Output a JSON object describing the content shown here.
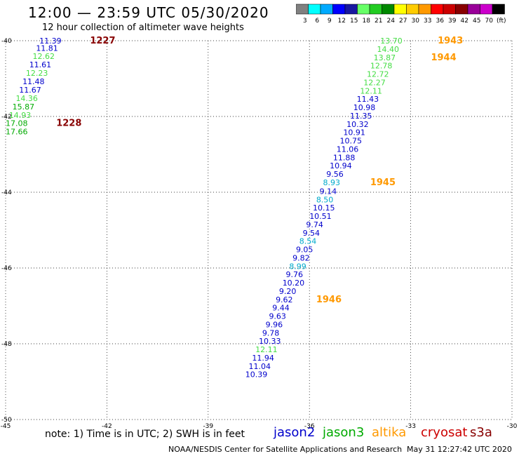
{
  "header": {
    "title": "12:00 — 23:59 UTC 05/30/2020",
    "subtitle": "12 hour collection of altimeter wave heights"
  },
  "color_scale": {
    "colors": [
      "#808080",
      "#00ffff",
      "#00aaff",
      "#0000ff",
      "#1818a0",
      "#66ff66",
      "#22cc22",
      "#008800",
      "#ffff00",
      "#ffcc00",
      "#ff9900",
      "#ff0000",
      "#cc0000",
      "#880000",
      "#990099",
      "#cc00cc",
      "#000000"
    ],
    "labels": [
      "3",
      "6",
      "9",
      "12",
      "15",
      "18",
      "21",
      "24",
      "27",
      "30",
      "33",
      "36",
      "39",
      "42",
      "45",
      "70",
      "(ft)"
    ]
  },
  "axes": {
    "x_ticks": [
      "-45",
      "-42",
      "-39",
      "-36",
      "-33",
      "-30"
    ],
    "y_ticks": [
      "-40",
      "-42",
      "-44",
      "-46",
      "-48",
      "-50"
    ],
    "xlim": [
      -45,
      -30
    ],
    "ylim": [
      -50,
      -40
    ]
  },
  "colors": {
    "blue": "#0000cc",
    "cyan": "#00aacc",
    "lightgreen": "#44dd44",
    "green": "#00aa00",
    "orange": "#ff9900",
    "darkred": "#880000"
  },
  "tracks": [
    {
      "points": [
        {
          "lon": -44.0,
          "lat": -40.0,
          "text": "11.39",
          "color": "blue"
        },
        {
          "lon": -44.1,
          "lat": -40.19,
          "text": "11.81",
          "color": "blue"
        },
        {
          "lon": -44.2,
          "lat": -40.41,
          "text": "12.62",
          "color": "lightgreen"
        },
        {
          "lon": -44.3,
          "lat": -40.63,
          "text": "11.61",
          "color": "blue"
        },
        {
          "lon": -44.4,
          "lat": -40.85,
          "text": "12.23",
          "color": "lightgreen"
        },
        {
          "lon": -44.5,
          "lat": -41.07,
          "text": "11.48",
          "color": "blue"
        },
        {
          "lon": -44.6,
          "lat": -41.3,
          "text": "11.67",
          "color": "blue"
        },
        {
          "lon": -44.7,
          "lat": -41.52,
          "text": "14.36",
          "color": "lightgreen"
        },
        {
          "lon": -44.8,
          "lat": -41.74,
          "text": "15.87",
          "color": "green"
        },
        {
          "lon": -44.9,
          "lat": -41.96,
          "text": "14.93",
          "color": "lightgreen"
        },
        {
          "lon": -45.0,
          "lat": -42.18,
          "text": "17.08",
          "color": "green"
        },
        {
          "lon": -45.0,
          "lat": -42.4,
          "text": "17.66",
          "color": "green"
        }
      ]
    },
    {
      "points": [
        {
          "lon": -33.9,
          "lat": -40.0,
          "text": "13.70",
          "color": "lightgreen"
        },
        {
          "lon": -34.0,
          "lat": -40.22,
          "text": "14.40",
          "color": "lightgreen"
        },
        {
          "lon": -34.1,
          "lat": -40.44,
          "text": "13.87",
          "color": "lightgreen"
        },
        {
          "lon": -34.2,
          "lat": -40.66,
          "text": "12.78",
          "color": "lightgreen"
        },
        {
          "lon": -34.3,
          "lat": -40.88,
          "text": "12.72",
          "color": "lightgreen"
        },
        {
          "lon": -34.4,
          "lat": -41.1,
          "text": "12.27",
          "color": "lightgreen"
        },
        {
          "lon": -34.5,
          "lat": -41.32,
          "text": "12.11",
          "color": "lightgreen"
        },
        {
          "lon": -34.6,
          "lat": -41.54,
          "text": "11.43",
          "color": "blue"
        },
        {
          "lon": -34.7,
          "lat": -41.76,
          "text": "10.98",
          "color": "blue"
        },
        {
          "lon": -34.8,
          "lat": -41.98,
          "text": "11.35",
          "color": "blue"
        },
        {
          "lon": -34.9,
          "lat": -42.2,
          "text": "10.32",
          "color": "blue"
        },
        {
          "lon": -35.0,
          "lat": -42.42,
          "text": "10.91",
          "color": "blue"
        },
        {
          "lon": -35.1,
          "lat": -42.64,
          "text": "10.75",
          "color": "blue"
        },
        {
          "lon": -35.2,
          "lat": -42.86,
          "text": "11.06",
          "color": "blue"
        },
        {
          "lon": -35.3,
          "lat": -43.08,
          "text": "11.88",
          "color": "blue"
        },
        {
          "lon": -35.4,
          "lat": -43.3,
          "text": "10.94",
          "color": "blue"
        },
        {
          "lon": -35.5,
          "lat": -43.52,
          "text": "9.56",
          "color": "blue"
        },
        {
          "lon": -35.6,
          "lat": -43.74,
          "text": "8.93",
          "color": "cyan"
        },
        {
          "lon": -35.7,
          "lat": -43.97,
          "text": "9.14",
          "color": "blue"
        },
        {
          "lon": -35.8,
          "lat": -44.19,
          "text": "8.50",
          "color": "cyan"
        },
        {
          "lon": -35.9,
          "lat": -44.41,
          "text": "10.15",
          "color": "blue"
        },
        {
          "lon": -36.0,
          "lat": -44.63,
          "text": "10.51",
          "color": "blue"
        },
        {
          "lon": -36.1,
          "lat": -44.85,
          "text": "9.74",
          "color": "blue"
        },
        {
          "lon": -36.2,
          "lat": -45.07,
          "text": "9.54",
          "color": "blue"
        },
        {
          "lon": -36.3,
          "lat": -45.29,
          "text": "8.54",
          "color": "cyan"
        },
        {
          "lon": -36.4,
          "lat": -45.51,
          "text": "9.05",
          "color": "blue"
        },
        {
          "lon": -36.5,
          "lat": -45.73,
          "text": "9.82",
          "color": "blue"
        },
        {
          "lon": -36.6,
          "lat": -45.95,
          "text": "8.99",
          "color": "cyan"
        },
        {
          "lon": -36.7,
          "lat": -46.17,
          "text": "9.76",
          "color": "blue"
        },
        {
          "lon": -36.8,
          "lat": -46.39,
          "text": "10.20",
          "color": "blue"
        },
        {
          "lon": -36.9,
          "lat": -46.61,
          "text": "9.20",
          "color": "blue"
        },
        {
          "lon": -37.0,
          "lat": -46.83,
          "text": "9.62",
          "color": "blue"
        },
        {
          "lon": -37.1,
          "lat": -47.05,
          "text": "9.44",
          "color": "blue"
        },
        {
          "lon": -37.2,
          "lat": -47.27,
          "text": "9.63",
          "color": "blue"
        },
        {
          "lon": -37.3,
          "lat": -47.49,
          "text": "9.96",
          "color": "blue"
        },
        {
          "lon": -37.4,
          "lat": -47.71,
          "text": "9.78",
          "color": "blue"
        },
        {
          "lon": -37.5,
          "lat": -47.93,
          "text": "10.33",
          "color": "blue"
        },
        {
          "lon": -37.6,
          "lat": -48.15,
          "text": "12.11",
          "color": "lightgreen"
        },
        {
          "lon": -37.7,
          "lat": -48.37,
          "text": "11.94",
          "color": "blue"
        },
        {
          "lon": -37.8,
          "lat": -48.59,
          "text": "11.04",
          "color": "blue"
        },
        {
          "lon": -37.9,
          "lat": -48.81,
          "text": "10.39",
          "color": "blue"
        }
      ]
    }
  ],
  "time_labels": [
    {
      "lon": -42.5,
      "lat": -40.0,
      "text": "1227",
      "color": "darkred"
    },
    {
      "lon": -43.5,
      "lat": -42.18,
      "text": "1228",
      "color": "darkred"
    },
    {
      "lon": -32.2,
      "lat": -40.0,
      "text": "1943",
      "color": "orange"
    },
    {
      "lon": -32.4,
      "lat": -40.44,
      "text": "1944",
      "color": "orange"
    },
    {
      "lon": -34.2,
      "lat": -43.74,
      "text": "1945",
      "color": "orange"
    },
    {
      "lon": -35.8,
      "lat": -46.83,
      "text": "1946",
      "color": "orange"
    }
  ],
  "footer": {
    "note": "note: 1) Time is in UTC; 2) SWH is in feet",
    "satellites": [
      {
        "name": "jason2",
        "color": "#0000cc"
      },
      {
        "name": "jason3",
        "color": "#00aa00"
      },
      {
        "name": "altika",
        "color": "#ff9900"
      },
      {
        "name": "cryosat",
        "color": "#cc0000"
      },
      {
        "name": "s3a",
        "color": "#880000"
      }
    ],
    "credit": "NOAA/NESDIS Center for Satellite Applications and Research",
    "timestamp": "May 31 12:27:42 UTC 2020"
  }
}
